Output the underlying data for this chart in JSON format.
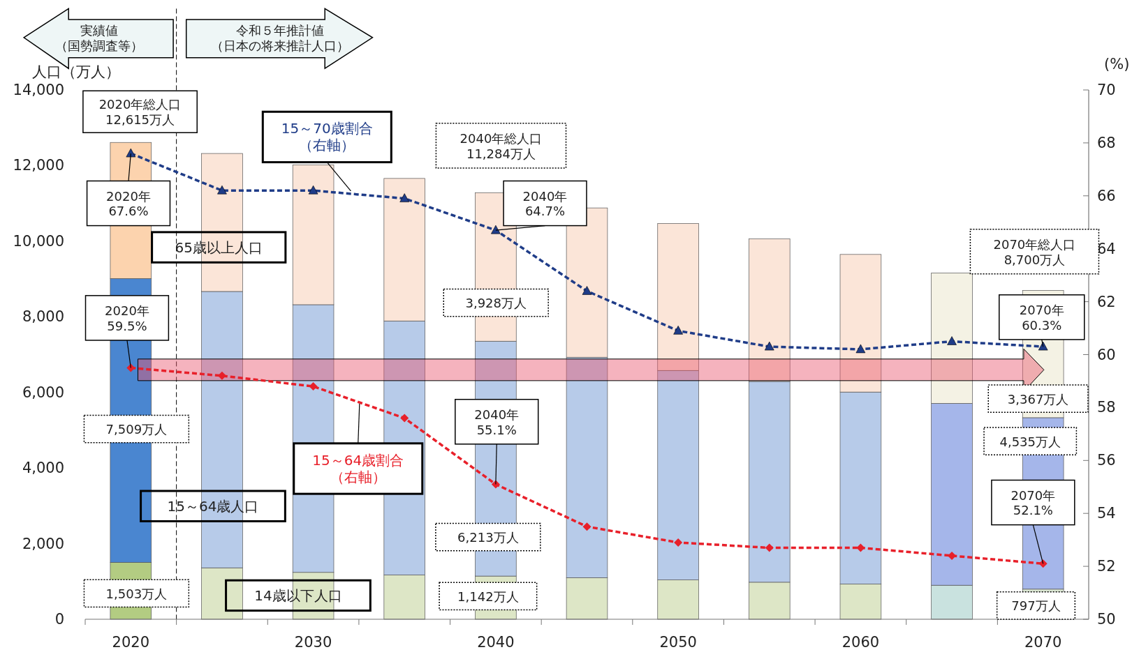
{
  "chart_data": {
    "type": "bar",
    "stacked": true,
    "legend": false,
    "ylabel": "人口（万人）",
    "y2label": "(%)",
    "x": [
      2020,
      2025,
      2030,
      2035,
      2040,
      2045,
      2050,
      2055,
      2060,
      2065,
      2070
    ],
    "xlim": [
      2017.5,
      2072.5
    ],
    "xticks": [
      {
        "value": 2017.5,
        "label": null
      },
      {
        "value": 2020,
        "label": "2020"
      },
      {
        "value": 2022.5,
        "label": null
      },
      {
        "value": 2027.5,
        "label": null
      },
      {
        "value": 2030,
        "label": "2030"
      },
      {
        "value": 2032.5,
        "label": null
      },
      {
        "value": 2037.5,
        "label": null
      },
      {
        "value": 2040,
        "label": "2040"
      },
      {
        "value": 2042.5,
        "label": null
      },
      {
        "value": 2047.5,
        "label": null
      },
      {
        "value": 2050,
        "label": "2050"
      },
      {
        "value": 2052.5,
        "label": null
      },
      {
        "value": 2057.5,
        "label": null
      },
      {
        "value": 2060,
        "label": "2060"
      },
      {
        "value": 2062.5,
        "label": null
      },
      {
        "value": 2067.5,
        "label": null
      },
      {
        "value": 2070,
        "label": "2070"
      }
    ],
    "ylim": [
      0,
      14000
    ],
    "yticks": [
      {
        "value": 0,
        "label": "0"
      },
      {
        "value": 2000,
        "label": "2,000"
      },
      {
        "value": 4000,
        "label": "4,000"
      },
      {
        "value": 6000,
        "label": "6,000"
      },
      {
        "value": 8000,
        "label": "8,000"
      },
      {
        "value": 10000,
        "label": "10,000"
      },
      {
        "value": 12000,
        "label": "12,000"
      },
      {
        "value": 14000,
        "label": "14,000"
      }
    ],
    "y2lim": [
      50,
      70
    ],
    "y2ticks": [
      50,
      52,
      54,
      56,
      58,
      60,
      62,
      64,
      66,
      68,
      70
    ],
    "ref_lines": [
      {
        "axis": "x",
        "value": 2022.5,
        "color": "#000000",
        "line_style": "dashed"
      }
    ],
    "series": [
      {
        "name": "14歳以下人口",
        "values": [
          1503,
          1360,
          1240,
          1170,
          1142,
          1100,
          1040,
          980,
          930,
          900,
          797
        ],
        "colors": [
          "#b3cc82",
          "#dde6c6",
          "#dde6c6",
          "#dde6c6",
          "#dde6c6",
          "#dde6c6",
          "#dde6c6",
          "#dde6c6",
          "#dde6c6",
          "#c9e2df",
          "#d8e4d0"
        ],
        "value_labels": [
          "1,503万人",
          null,
          null,
          null,
          "1,142万人",
          null,
          null,
          null,
          null,
          null,
          "797万人"
        ]
      },
      {
        "name": "15～64歳人口",
        "values": [
          7509,
          7310,
          7080,
          6720,
          6213,
          5830,
          5540,
          5310,
          5080,
          4810,
          4535
        ],
        "colors": [
          "#4a86d0",
          "#b7cbe9",
          "#b7cbe9",
          "#b7cbe9",
          "#b7cbe9",
          "#b7cbe9",
          "#b7cbe9",
          "#b7cbe9",
          "#b7cbe9",
          "#a5b6ea",
          "#a5b6ea"
        ],
        "value_labels": [
          "7,509万人",
          null,
          null,
          null,
          "6,213万人",
          null,
          null,
          null,
          null,
          null,
          "4,535万人"
        ]
      },
      {
        "name": "65歳以上人口",
        "values": [
          3600,
          3650,
          3700,
          3770,
          3928,
          3950,
          3890,
          3770,
          3640,
          3450,
          3367
        ],
        "colors": [
          "#fcd3ae",
          "#fbe5d8",
          "#fbe5d8",
          "#fbe5d8",
          "#fbe5d8",
          "#fbe5d8",
          "#fbe5d8",
          "#fbe5d8",
          "#fbe5d8",
          "#f4f2e4",
          "#f4f2e4"
        ],
        "value_labels": [
          null,
          null,
          null,
          null,
          "3,928万人",
          null,
          null,
          null,
          null,
          null,
          "3,367万人"
        ]
      },
      {
        "name": "15～70歳割合（右軸）",
        "type": "line",
        "axis": "y2",
        "color": "#1f3c88",
        "marker": "triangle",
        "line_style": "dashed",
        "values": [
          67.6,
          66.2,
          66.2,
          65.9,
          64.7,
          62.4,
          60.9,
          60.3,
          60.2,
          60.5,
          60.3
        ],
        "value_labels": [
          "2020年\n67.6%",
          null,
          null,
          null,
          "2040年\n64.7%",
          null,
          null,
          null,
          null,
          null,
          "2070年\n60.3%"
        ]
      },
      {
        "name": "15～64歳割合（右軸）",
        "type": "line",
        "axis": "y2",
        "color": "#e8202a",
        "marker": "diamond",
        "line_style": "dashed",
        "values": [
          59.5,
          59.2,
          58.8,
          57.6,
          55.1,
          53.5,
          52.9,
          52.7,
          52.7,
          52.4,
          52.1
        ],
        "value_labels": [
          "2020年\n59.5%",
          null,
          null,
          null,
          "2040年\n55.1%",
          null,
          null,
          null,
          null,
          null,
          "2070年\n52.1%"
        ]
      }
    ],
    "annotations": [
      "実績値（国勢調査等）",
      "令和５年推計値（日本の将来推計人口）",
      "2020年総人口\n12,615万人",
      "2040年総人口\n11,284万人",
      "2070年総人口\n8,700万人"
    ]
  }
}
